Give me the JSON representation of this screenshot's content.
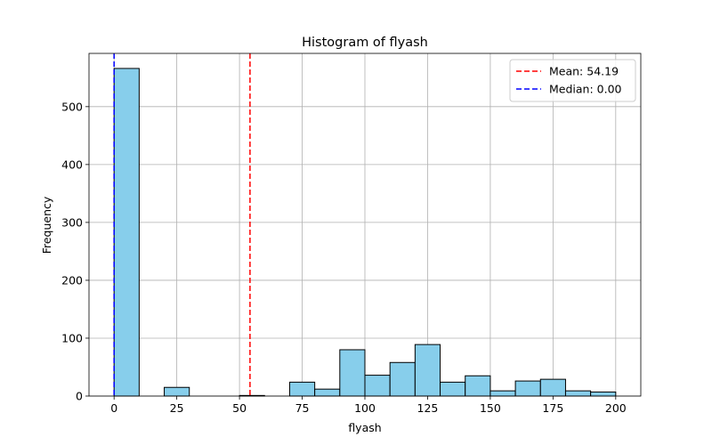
{
  "chart_data": {
    "type": "bar",
    "title": "Histogram of flyash",
    "xlabel": "flyash",
    "ylabel": "Frequency",
    "xlim": [
      -10.0,
      210.0
    ],
    "ylim": [
      0,
      592
    ],
    "xticks": [
      0,
      25,
      50,
      75,
      100,
      125,
      150,
      175,
      200
    ],
    "yticks": [
      0,
      100,
      200,
      300,
      400,
      500
    ],
    "bins": [
      {
        "x0": 0,
        "x1": 10,
        "value": 566
      },
      {
        "x0": 10,
        "x1": 20,
        "value": 0
      },
      {
        "x0": 20,
        "x1": 30,
        "value": 15
      },
      {
        "x0": 30,
        "x1": 40,
        "value": 0
      },
      {
        "x0": 40,
        "x1": 50,
        "value": 0
      },
      {
        "x0": 50,
        "x1": 60,
        "value": 1
      },
      {
        "x0": 60,
        "x1": 70,
        "value": 0
      },
      {
        "x0": 70,
        "x1": 80,
        "value": 24
      },
      {
        "x0": 80,
        "x1": 90,
        "value": 12
      },
      {
        "x0": 90,
        "x1": 100,
        "value": 80
      },
      {
        "x0": 100,
        "x1": 110,
        "value": 36
      },
      {
        "x0": 110,
        "x1": 120,
        "value": 58
      },
      {
        "x0": 120,
        "x1": 130,
        "value": 89
      },
      {
        "x0": 130,
        "x1": 140,
        "value": 24
      },
      {
        "x0": 140,
        "x1": 150,
        "value": 35
      },
      {
        "x0": 150,
        "x1": 160,
        "value": 9
      },
      {
        "x0": 160,
        "x1": 170,
        "value": 26
      },
      {
        "x0": 170,
        "x1": 180,
        "value": 29
      },
      {
        "x0": 180,
        "x1": 190,
        "value": 9
      },
      {
        "x0": 190,
        "x1": 200,
        "value": 7
      }
    ],
    "reference_lines": [
      {
        "name": "Mean",
        "value": 54.19,
        "label": "Mean: 54.19",
        "color": "#ff0000"
      },
      {
        "name": "Median",
        "value": 0.0,
        "label": "Median: 0.00",
        "color": "#0000ff"
      }
    ],
    "bar_color": "#87ceeb",
    "edge_color": "#000000",
    "grid": true,
    "legend_position": "top-right"
  }
}
